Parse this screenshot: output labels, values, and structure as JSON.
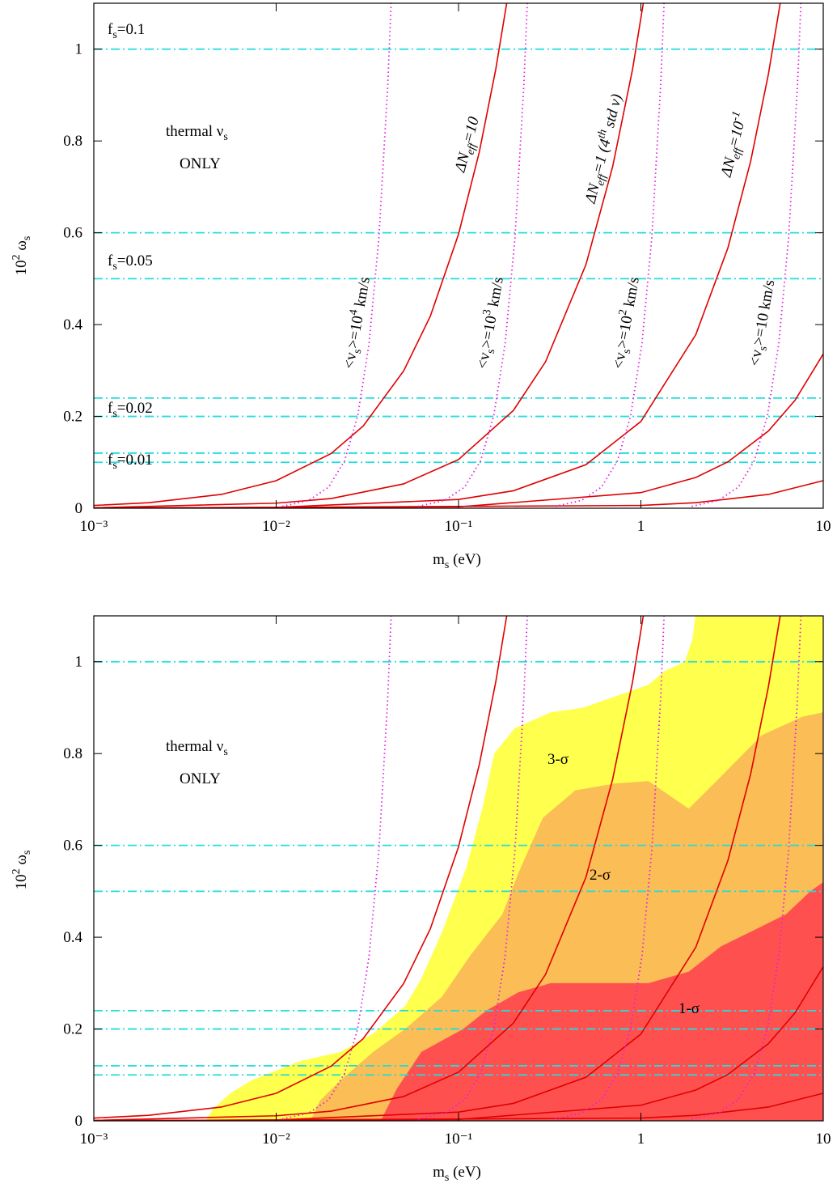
{
  "chart_data": [
    {
      "type": "line",
      "xlabel": [
        {
          "text": "m"
        },
        {
          "text": "s",
          "sub": true
        },
        {
          "text": " (eV)"
        }
      ],
      "ylabel": [
        {
          "text": "10"
        },
        {
          "text": "2",
          "sup": true
        },
        {
          "text": " ω"
        },
        {
          "text": "s",
          "sub": true
        }
      ],
      "xlog": true,
      "xlim": [
        0.001,
        10
      ],
      "ylim": [
        0,
        1.1
      ],
      "xticks": [
        {
          "value": 0.001,
          "label": "10⁻³"
        },
        {
          "value": 0.01,
          "label": "10⁻²"
        },
        {
          "value": 0.1,
          "label": "10⁻¹"
        },
        1,
        10
      ],
      "yticks": [
        0,
        0.2,
        0.4,
        0.6,
        0.8,
        1
      ],
      "hlines": {
        "values": [
          1,
          0.6,
          0.5,
          0.24,
          0.2,
          0.12,
          0.1
        ],
        "color": "#22dddd",
        "style": "dashdot"
      },
      "series": [
        {
          "color": "#e00000",
          "style": "solid",
          "x": [
            0.001,
            0.002,
            0.005,
            0.01,
            0.02,
            0.03,
            0.05,
            0.07,
            0.1,
            0.13,
            0.16,
            0.19
          ],
          "values": [
            0.006,
            0.012,
            0.03,
            0.06,
            0.119,
            0.179,
            0.299,
            0.418,
            0.597,
            0.776,
            0.956,
            1.135
          ]
        },
        {
          "color": "#e00000",
          "style": "solid",
          "x": [
            0.001,
            0.01,
            0.02,
            0.05,
            0.1,
            0.2,
            0.3,
            0.5,
            0.7,
            0.9,
            1.1
          ],
          "values": [
            0.001,
            0.011,
            0.021,
            0.053,
            0.106,
            0.213,
            0.319,
            0.531,
            0.744,
            0.956,
            1.169
          ]
        },
        {
          "color": "#e00000",
          "style": "solid",
          "x": [
            0.001,
            0.01,
            0.1,
            0.2,
            0.5,
            1,
            2,
            3,
            4,
            5,
            6
          ],
          "values": [
            0.0002,
            0.002,
            0.019,
            0.038,
            0.095,
            0.189,
            0.378,
            0.567,
            0.756,
            0.945,
            1.134
          ]
        },
        {
          "color": "#e00000",
          "style": "solid",
          "x": [
            0.001,
            0.1,
            1,
            2,
            3,
            5,
            7,
            10
          ],
          "values": [
            0,
            0.003,
            0.034,
            0.067,
            0.101,
            0.168,
            0.235,
            0.336
          ]
        },
        {
          "color": "#e00000",
          "style": "solid",
          "x": [
            0.001,
            1,
            2,
            5,
            10
          ],
          "values": [
            0,
            0.006,
            0.012,
            0.03,
            0.06
          ]
        },
        {
          "color": "#e020e0",
          "style": "dotted",
          "x": [
            0.0108,
            0.0151,
            0.0194,
            0.0237,
            0.028,
            0.0323,
            0.0366,
            0.0409,
            0.043
          ],
          "values": [
            0.004,
            0.017,
            0.046,
            0.103,
            0.201,
            0.358,
            0.59,
            0.92,
            1.13
          ]
        },
        {
          "color": "#e020e0",
          "style": "dotted",
          "x": [
            0.06,
            0.084,
            0.108,
            0.132,
            0.156,
            0.18,
            0.204,
            0.228,
            0.24
          ],
          "values": [
            0.004,
            0.017,
            0.046,
            0.103,
            0.201,
            0.358,
            0.59,
            0.92,
            1.13
          ]
        },
        {
          "color": "#e020e0",
          "style": "dotted",
          "x": [
            0.338,
            0.473,
            0.608,
            0.743,
            0.878,
            1.013,
            1.148,
            1.283,
            1.35
          ],
          "values": [
            0.004,
            0.017,
            0.046,
            0.103,
            0.201,
            0.358,
            0.59,
            0.92,
            1.13
          ]
        },
        {
          "color": "#e020e0",
          "style": "dotted",
          "x": [
            1.9,
            2.66,
            3.42,
            4.18,
            4.94,
            5.7,
            6.46,
            7.22,
            7.6
          ],
          "values": [
            0.004,
            0.017,
            0.046,
            0.103,
            0.201,
            0.358,
            0.59,
            0.92,
            1.13
          ]
        }
      ],
      "annotations": [
        {
          "color": "#000000",
          "runs": [
            {
              "text": "f"
            },
            {
              "text": "s",
              "sub": true
            },
            {
              "text": "=0.1"
            }
          ]
        },
        {
          "color": "#000000",
          "runs": [
            {
              "text": "f"
            },
            {
              "text": "s",
              "sub": true
            },
            {
              "text": "=0.05"
            }
          ]
        },
        {
          "color": "#000000",
          "runs": [
            {
              "text": "f"
            },
            {
              "text": "s",
              "sub": true
            },
            {
              "text": "=0.02"
            }
          ]
        },
        {
          "color": "#000000",
          "runs": [
            {
              "text": "f"
            },
            {
              "text": "s",
              "sub": true
            },
            {
              "text": "=0.01"
            }
          ]
        },
        {
          "color": "#000000",
          "runs": [
            {
              "text": "thermal ν"
            },
            {
              "text": "s",
              "sub": true
            }
          ]
        },
        {
          "color": "#000000",
          "runs": [
            {
              "text": "ONLY"
            }
          ]
        },
        {
          "color": "#e00000",
          "italic": true,
          "runs": [
            {
              "text": "ΔN"
            },
            {
              "text": "eff",
              "sub": true
            },
            {
              "text": "=10"
            }
          ]
        },
        {
          "color": "#e00000",
          "italic": true,
          "runs": [
            {
              "text": "ΔN"
            },
            {
              "text": "eff",
              "sub": true
            },
            {
              "text": "=1  (4"
            },
            {
              "text": "th",
              "sup": true
            },
            {
              "text": " std ν)"
            }
          ]
        },
        {
          "color": "#e00000",
          "italic": true,
          "runs": [
            {
              "text": "ΔN"
            },
            {
              "text": "eff",
              "sub": true
            },
            {
              "text": "=10"
            },
            {
              "text": "-1",
              "sup": true
            }
          ]
        },
        {
          "color": "#e020e0",
          "runs": [
            {
              "text": "<v"
            },
            {
              "text": "s",
              "sub": true
            },
            {
              "text": ">=10"
            },
            {
              "text": "4",
              "sup": true
            },
            {
              "text": " km/s"
            }
          ]
        },
        {
          "color": "#e020e0",
          "runs": [
            {
              "text": "<v"
            },
            {
              "text": "s",
              "sub": true
            },
            {
              "text": ">=10"
            },
            {
              "text": "3",
              "sup": true
            },
            {
              "text": " km/s"
            }
          ]
        },
        {
          "color": "#e020e0",
          "runs": [
            {
              "text": "<v"
            },
            {
              "text": "s",
              "sub": true
            },
            {
              "text": ">=10"
            },
            {
              "text": "2",
              "sup": true
            },
            {
              "text": " km/s"
            }
          ]
        },
        {
          "color": "#e020e0",
          "runs": [
            {
              "text": "<v"
            },
            {
              "text": "s",
              "sub": true
            },
            {
              "text": ">=10 km/s"
            }
          ]
        }
      ]
    },
    {
      "type": "line",
      "xlabel": [
        {
          "text": "m"
        },
        {
          "text": "s",
          "sub": true
        },
        {
          "text": " (eV)"
        }
      ],
      "ylabel": [
        {
          "text": "10"
        },
        {
          "text": "2",
          "sup": true
        },
        {
          "text": " ω"
        },
        {
          "text": "s",
          "sub": true
        }
      ],
      "xlog": true,
      "xlim": [
        0.001,
        10
      ],
      "ylim": [
        0,
        1.1
      ],
      "xticks": [
        {
          "value": 0.001,
          "label": "10⁻³"
        },
        {
          "value": 0.01,
          "label": "10⁻²"
        },
        {
          "value": 0.1,
          "label": "10⁻¹"
        },
        1,
        10
      ],
      "yticks": [
        0,
        0.2,
        0.4,
        0.6,
        0.8,
        1
      ],
      "regions": [
        {
          "name": "3-σ",
          "color": "#ffff4d",
          "x": [
            0.0041,
            0.0045,
            0.0056,
            0.0073,
            0.0135,
            0.0225,
            0.034,
            0.051,
            0.0625,
            0.081,
            0.11,
            0.135,
            0.157,
            0.203,
            0.321,
            0.483,
            0.728,
            1.1,
            1.35,
            1.74,
            1.92,
            1.99,
            10
          ],
          "values": [
            0,
            0.026,
            0.06,
            0.088,
            0.13,
            0.15,
            0.19,
            0.25,
            0.31,
            0.41,
            0.55,
            0.68,
            0.8,
            0.855,
            0.89,
            0.9,
            0.925,
            0.95,
            0.98,
            1,
            1.05,
            1.1,
            1.1
          ]
        },
        {
          "name": "2-σ",
          "color": "#fbbd55",
          "x": [
            0.0154,
            0.0174,
            0.0225,
            0.034,
            0.051,
            0.081,
            0.116,
            0.174,
            0.213,
            0.29,
            0.437,
            0.728,
            1.1,
            1.83,
            2.75,
            4.6,
            7.66,
            10
          ],
          "values": [
            0,
            0.044,
            0.088,
            0.15,
            0.2,
            0.27,
            0.36,
            0.45,
            0.54,
            0.66,
            0.72,
            0.735,
            0.74,
            0.68,
            0.75,
            0.84,
            0.88,
            0.89
          ]
        },
        {
          "name": "1-σ",
          "color": "#ff5050",
          "x": [
            0.0374,
            0.0459,
            0.0625,
            0.106,
            0.142,
            0.213,
            0.321,
            0.483,
            1.1,
            1.83,
            2.75,
            4.15,
            6.25,
            8.49,
            10
          ],
          "values": [
            0,
            0.07,
            0.15,
            0.2,
            0.24,
            0.28,
            0.3,
            0.3,
            0.3,
            0.325,
            0.38,
            0.415,
            0.45,
            0.5,
            0.52
          ]
        }
      ],
      "hlines": {
        "values": [
          1,
          0.6,
          0.5,
          0.24,
          0.2,
          0.12,
          0.1
        ],
        "color": "#22dddd",
        "style": "dashdot"
      },
      "series": [
        {
          "color": "#e00000",
          "style": "solid",
          "x": [
            0.001,
            0.002,
            0.005,
            0.01,
            0.02,
            0.03,
            0.05,
            0.07,
            0.1,
            0.13,
            0.16,
            0.19
          ],
          "values": [
            0.006,
            0.012,
            0.03,
            0.06,
            0.119,
            0.179,
            0.299,
            0.418,
            0.597,
            0.776,
            0.956,
            1.135
          ]
        },
        {
          "color": "#e00000",
          "style": "solid",
          "x": [
            0.001,
            0.01,
            0.02,
            0.05,
            0.1,
            0.2,
            0.3,
            0.5,
            0.7,
            0.9,
            1.1
          ],
          "values": [
            0.001,
            0.011,
            0.021,
            0.053,
            0.106,
            0.213,
            0.319,
            0.531,
            0.744,
            0.956,
            1.169
          ]
        },
        {
          "color": "#e00000",
          "style": "solid",
          "x": [
            0.001,
            0.01,
            0.1,
            0.2,
            0.5,
            1,
            2,
            3,
            4,
            5,
            6
          ],
          "values": [
            0.0002,
            0.002,
            0.019,
            0.038,
            0.095,
            0.189,
            0.378,
            0.567,
            0.756,
            0.945,
            1.134
          ]
        },
        {
          "color": "#e00000",
          "style": "solid",
          "x": [
            0.001,
            0.1,
            1,
            2,
            3,
            5,
            7,
            10
          ],
          "values": [
            0,
            0.003,
            0.034,
            0.067,
            0.101,
            0.168,
            0.235,
            0.336
          ]
        },
        {
          "color": "#e00000",
          "style": "solid",
          "x": [
            0.001,
            1,
            2,
            5,
            10
          ],
          "values": [
            0,
            0.006,
            0.012,
            0.03,
            0.06
          ]
        },
        {
          "color": "#e020e0",
          "style": "dotted",
          "x": [
            0.0108,
            0.0151,
            0.0194,
            0.0237,
            0.028,
            0.0323,
            0.0366,
            0.0409,
            0.043
          ],
          "values": [
            0.004,
            0.017,
            0.046,
            0.103,
            0.201,
            0.358,
            0.59,
            0.92,
            1.13
          ]
        },
        {
          "color": "#e020e0",
          "style": "dotted",
          "x": [
            0.06,
            0.084,
            0.108,
            0.132,
            0.156,
            0.18,
            0.204,
            0.228,
            0.24
          ],
          "values": [
            0.004,
            0.017,
            0.046,
            0.103,
            0.201,
            0.358,
            0.59,
            0.92,
            1.13
          ]
        },
        {
          "color": "#e020e0",
          "style": "dotted",
          "x": [
            0.338,
            0.473,
            0.608,
            0.743,
            0.878,
            1.013,
            1.148,
            1.283,
            1.35
          ],
          "values": [
            0.004,
            0.017,
            0.046,
            0.103,
            0.201,
            0.358,
            0.59,
            0.92,
            1.13
          ]
        },
        {
          "color": "#e020e0",
          "style": "dotted",
          "x": [
            1.9,
            2.66,
            3.42,
            4.18,
            4.94,
            5.7,
            6.46,
            7.22,
            7.6
          ],
          "values": [
            0.004,
            0.017,
            0.046,
            0.103,
            0.201,
            0.358,
            0.59,
            0.92,
            1.13
          ]
        }
      ],
      "annotations": [
        {
          "color": "#000000",
          "runs": [
            {
              "text": "thermal ν"
            },
            {
              "text": "s",
              "sub": true
            }
          ]
        },
        {
          "color": "#000000",
          "runs": [
            {
              "text": "ONLY"
            }
          ]
        }
      ]
    }
  ]
}
